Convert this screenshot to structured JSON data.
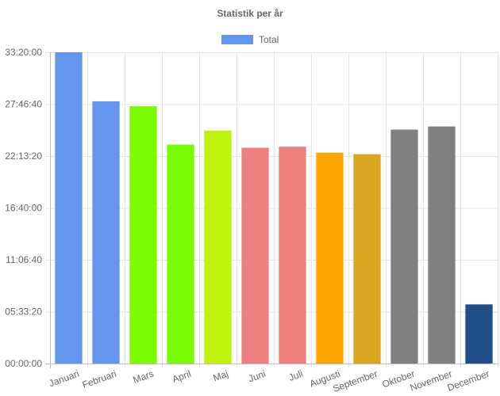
{
  "chart_data": {
    "type": "bar",
    "title": "Statistik per år",
    "legend": {
      "label": "Total",
      "color": "#6495ed",
      "placement": "top"
    },
    "categories": [
      "Januari",
      "Februari",
      "Mars",
      "April",
      "Maj",
      "Juni",
      "Juli",
      "Augusti",
      "September",
      "Oktober",
      "November",
      "December"
    ],
    "values": [
      120000,
      101100,
      99200,
      84400,
      89800,
      83200,
      83600,
      81300,
      80700,
      90200,
      91400,
      22800
    ],
    "value_format": "hh:mm:ss",
    "colors": [
      "#6495ed",
      "#6495ed",
      "#7cfc00",
      "#7cfc00",
      "#bff20f",
      "#f08080",
      "#f08080",
      "#ffa500",
      "#daa520",
      "#808080",
      "#808080",
      "#224f86"
    ],
    "ylim": [
      0,
      120000
    ],
    "yticks": [
      0,
      20000,
      40000,
      60000,
      80000,
      100000,
      120000
    ],
    "ytick_labels": [
      "00:00:00",
      "05:33:20",
      "11:06:40",
      "16:40:00",
      "22:13:20",
      "27:46:40",
      "33:20:00"
    ],
    "grid": true,
    "xlabel": "",
    "ylabel": ""
  }
}
